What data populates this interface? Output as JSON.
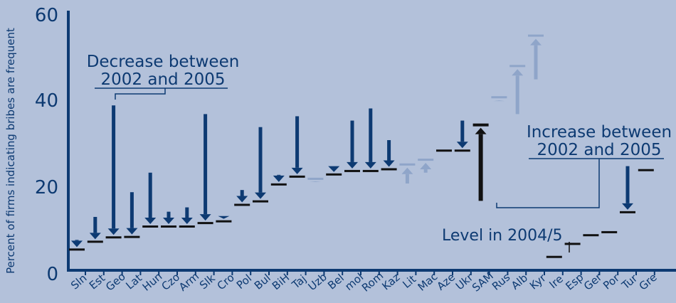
{
  "chart_data": {
    "type": "bar",
    "ylabel": "Percent of firms indicating bribes are frequent",
    "ylim": [
      0,
      60
    ],
    "yticks": [
      "0",
      "20",
      "40",
      "60"
    ],
    "colors": {
      "background": "#b3c1da",
      "decrease": "#0d3a72",
      "increase": "#8fa5c9",
      "level": "#111111",
      "annotation": "#0d3a72"
    },
    "series": [
      {
        "name": "2002",
        "values": [
          7,
          12.3,
          38,
          18,
          22.5,
          13.5,
          14.5,
          36,
          12.5,
          18.5,
          33,
          22,
          35.5,
          20.5,
          24,
          34.5,
          37.3,
          30,
          20,
          22.5,
          null,
          34.5,
          16,
          39,
          36,
          44,
          null,
          null,
          null,
          null,
          24,
          null
        ]
      },
      {
        "name": "2005",
        "values": [
          4.7,
          6.5,
          7.5,
          7.6,
          10,
          10,
          10,
          10.8,
          11.2,
          15,
          15.8,
          19.7,
          21.5,
          21,
          22,
          22.8,
          22.8,
          23.2,
          24.3,
          25.4,
          27.5,
          27.5,
          33.5,
          39.8,
          47,
          54,
          3,
          6,
          8,
          8.7,
          13.3,
          23
        ]
      }
    ],
    "categories": [
      "Sln",
      "Est",
      "Geo",
      "Lat",
      "Hun",
      "Czo",
      "Arm",
      "Slk",
      "Cro",
      "Pol",
      "Bul",
      "BiH",
      "Taj",
      "Uzb",
      "Bel",
      "mol",
      "Rom",
      "Kaz",
      "Lit",
      "Mac",
      "Aze",
      "Ukr",
      "SAM",
      "Rus",
      "Alb",
      "Kyr",
      "Ire",
      "Esp",
      "Ger",
      "Por",
      "Tur",
      "Gre"
    ],
    "highlight": "SAM",
    "annotations": {
      "decrease": {
        "line1": "Decrease between",
        "line2": "2002 and 2005"
      },
      "increase": {
        "line1": "Increase between",
        "line2": "2002 and 2005"
      },
      "level": "Level in 2004/5"
    }
  }
}
